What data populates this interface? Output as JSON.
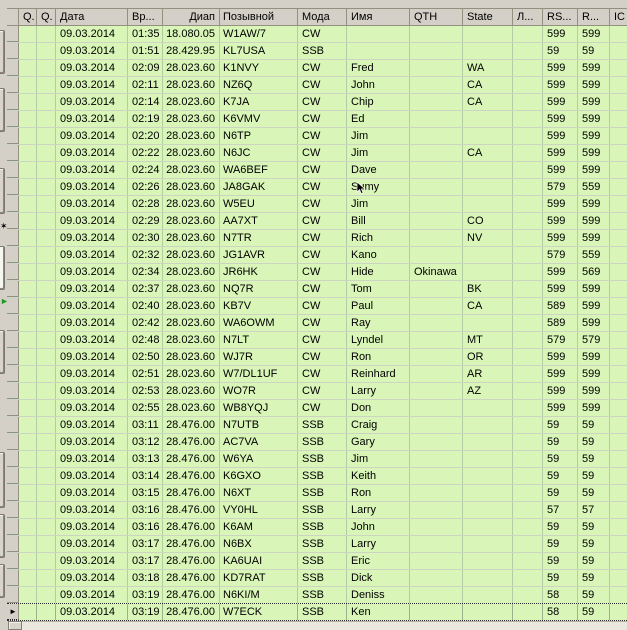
{
  "colors": {
    "window_chrome": "#d4d0c8",
    "cell_bg": "#d9f6b8",
    "grid_v_line": "#b2cda1",
    "grid_h_line": "#ccd4c2",
    "header_bg": "#d4d0c8",
    "header_line": "#94907f",
    "text": "#000000",
    "focus_dotted": "#2b2b2b",
    "green_arrow": "#1f9a27"
  },
  "icons": {
    "current_row_marker": "►",
    "left_toolbar_star": "✶",
    "left_toolbar_green_arrow": "►"
  },
  "table": {
    "headers": {
      "q1": "Q.",
      "q2": "Q.",
      "date": "Дата",
      "time": "Вр...",
      "freq": "Диап",
      "call": "Позывной",
      "mode": "Мода",
      "name": "Имя",
      "qth": "QTH",
      "state": "State",
      "l": "Л...",
      "rs_s": "RS...",
      "rs_r": "R...",
      "ic": "IC"
    },
    "rows": [
      {
        "q1": "",
        "q2": "",
        "date": "09.03.2014",
        "time": "01:35",
        "freq": "18.080.05",
        "call": "W1AW/7",
        "mode": "CW",
        "name": "",
        "qth": "",
        "state": "",
        "l": "",
        "rs_s": "599",
        "rs_r": "599",
        "ic": "",
        "focused": false
      },
      {
        "q1": "",
        "q2": "",
        "date": "09.03.2014",
        "time": "01:51",
        "freq": "28.429.95",
        "call": "KL7USA",
        "mode": "SSB",
        "name": "",
        "qth": "",
        "state": "",
        "l": "",
        "rs_s": "59",
        "rs_r": "59",
        "ic": "",
        "focused": false
      },
      {
        "q1": "",
        "q2": "",
        "date": "09.03.2014",
        "time": "02:09",
        "freq": "28.023.60",
        "call": "K1NVY",
        "mode": "CW",
        "name": "Fred",
        "qth": "",
        "state": "WA",
        "l": "",
        "rs_s": "599",
        "rs_r": "599",
        "ic": "",
        "focused": false
      },
      {
        "q1": "",
        "q2": "",
        "date": "09.03.2014",
        "time": "02:11",
        "freq": "28.023.60",
        "call": "NZ6Q",
        "mode": "CW",
        "name": "John",
        "qth": "",
        "state": "CA",
        "l": "",
        "rs_s": "599",
        "rs_r": "599",
        "ic": "",
        "focused": false
      },
      {
        "q1": "",
        "q2": "",
        "date": "09.03.2014",
        "time": "02:14",
        "freq": "28.023.60",
        "call": "K7JA",
        "mode": "CW",
        "name": "Chip",
        "qth": "",
        "state": "CA",
        "l": "",
        "rs_s": "599",
        "rs_r": "599",
        "ic": "",
        "focused": false
      },
      {
        "q1": "",
        "q2": "",
        "date": "09.03.2014",
        "time": "02:19",
        "freq": "28.023.60",
        "call": "K6VMV",
        "mode": "CW",
        "name": "Ed",
        "qth": "",
        "state": "",
        "l": "",
        "rs_s": "599",
        "rs_r": "599",
        "ic": "",
        "focused": false
      },
      {
        "q1": "",
        "q2": "",
        "date": "09.03.2014",
        "time": "02:20",
        "freq": "28.023.60",
        "call": "N6TP",
        "mode": "CW",
        "name": "Jim",
        "qth": "",
        "state": "",
        "l": "",
        "rs_s": "599",
        "rs_r": "599",
        "ic": "",
        "focused": false
      },
      {
        "q1": "",
        "q2": "",
        "date": "09.03.2014",
        "time": "02:22",
        "freq": "28.023.60",
        "call": "N6JC",
        "mode": "CW",
        "name": "Jim",
        "qth": "",
        "state": "CA",
        "l": "",
        "rs_s": "599",
        "rs_r": "599",
        "ic": "",
        "focused": false
      },
      {
        "q1": "",
        "q2": "",
        "date": "09.03.2014",
        "time": "02:24",
        "freq": "28.023.60",
        "call": "WA6BEF",
        "mode": "CW",
        "name": "Dave",
        "qth": "",
        "state": "",
        "l": "",
        "rs_s": "599",
        "rs_r": "599",
        "ic": "",
        "focused": false
      },
      {
        "q1": "",
        "q2": "",
        "date": "09.03.2014",
        "time": "02:26",
        "freq": "28.023.60",
        "call": "JA8GAK",
        "mode": "CW",
        "name": "Sumy",
        "qth": "",
        "state": "",
        "l": "",
        "rs_s": "579",
        "rs_r": "559",
        "ic": "",
        "focused": false
      },
      {
        "q1": "",
        "q2": "",
        "date": "09.03.2014",
        "time": "02:28",
        "freq": "28.023.60",
        "call": "W5EU",
        "mode": "CW",
        "name": "Jim",
        "qth": "",
        "state": "",
        "l": "",
        "rs_s": "599",
        "rs_r": "599",
        "ic": "",
        "focused": false
      },
      {
        "q1": "",
        "q2": "",
        "date": "09.03.2014",
        "time": "02:29",
        "freq": "28.023.60",
        "call": "AA7XT",
        "mode": "CW",
        "name": "Bill",
        "qth": "",
        "state": "CO",
        "l": "",
        "rs_s": "599",
        "rs_r": "599",
        "ic": "",
        "focused": false
      },
      {
        "q1": "",
        "q2": "",
        "date": "09.03.2014",
        "time": "02:30",
        "freq": "28.023.60",
        "call": "N7TR",
        "mode": "CW",
        "name": "Rich",
        "qth": "",
        "state": "NV",
        "l": "",
        "rs_s": "599",
        "rs_r": "599",
        "ic": "",
        "focused": false
      },
      {
        "q1": "",
        "q2": "",
        "date": "09.03.2014",
        "time": "02:32",
        "freq": "28.023.60",
        "call": "JG1AVR",
        "mode": "CW",
        "name": "Kano",
        "qth": "",
        "state": "",
        "l": "",
        "rs_s": "579",
        "rs_r": "559",
        "ic": "",
        "focused": false
      },
      {
        "q1": "",
        "q2": "",
        "date": "09.03.2014",
        "time": "02:34",
        "freq": "28.023.60",
        "call": "JR6HK",
        "mode": "CW",
        "name": "Hide",
        "qth": "Okinawa",
        "state": "",
        "l": "",
        "rs_s": "599",
        "rs_r": "569",
        "ic": "",
        "focused": false
      },
      {
        "q1": "",
        "q2": "",
        "date": "09.03.2014",
        "time": "02:37",
        "freq": "28.023.60",
        "call": "NQ7R",
        "mode": "CW",
        "name": "Tom",
        "qth": "",
        "state": "BK",
        "l": "",
        "rs_s": "599",
        "rs_r": "599",
        "ic": "",
        "focused": false
      },
      {
        "q1": "",
        "q2": "",
        "date": "09.03.2014",
        "time": "02:40",
        "freq": "28.023.60",
        "call": "KB7V",
        "mode": "CW",
        "name": "Paul",
        "qth": "",
        "state": "CA",
        "l": "",
        "rs_s": "589",
        "rs_r": "599",
        "ic": "",
        "focused": false
      },
      {
        "q1": "",
        "q2": "",
        "date": "09.03.2014",
        "time": "02:42",
        "freq": "28.023.60",
        "call": "WA6OWM",
        "mode": "CW",
        "name": "Ray",
        "qth": "",
        "state": "",
        "l": "",
        "rs_s": "589",
        "rs_r": "599",
        "ic": "",
        "focused": false
      },
      {
        "q1": "",
        "q2": "",
        "date": "09.03.2014",
        "time": "02:48",
        "freq": "28.023.60",
        "call": "N7LT",
        "mode": "CW",
        "name": "Lyndel",
        "qth": "",
        "state": "MT",
        "l": "",
        "rs_s": "579",
        "rs_r": "579",
        "ic": "",
        "focused": false
      },
      {
        "q1": "",
        "q2": "",
        "date": "09.03.2014",
        "time": "02:50",
        "freq": "28.023.60",
        "call": "WJ7R",
        "mode": "CW",
        "name": "Ron",
        "qth": "",
        "state": "OR",
        "l": "",
        "rs_s": "599",
        "rs_r": "599",
        "ic": "",
        "focused": false
      },
      {
        "q1": "",
        "q2": "",
        "date": "09.03.2014",
        "time": "02:51",
        "freq": "28.023.60",
        "call": "W7/DL1UF",
        "mode": "CW",
        "name": "Reinhard",
        "qth": "",
        "state": "AR",
        "l": "",
        "rs_s": "599",
        "rs_r": "599",
        "ic": "",
        "focused": false
      },
      {
        "q1": "",
        "q2": "",
        "date": "09.03.2014",
        "time": "02:53",
        "freq": "28.023.60",
        "call": "WO7R",
        "mode": "CW",
        "name": "Larry",
        "qth": "",
        "state": "AZ",
        "l": "",
        "rs_s": "599",
        "rs_r": "599",
        "ic": "",
        "focused": false
      },
      {
        "q1": "",
        "q2": "",
        "date": "09.03.2014",
        "time": "02:55",
        "freq": "28.023.60",
        "call": "WB8YQJ",
        "mode": "CW",
        "name": "Don",
        "qth": "",
        "state": "",
        "l": "",
        "rs_s": "599",
        "rs_r": "599",
        "ic": "",
        "focused": false
      },
      {
        "q1": "",
        "q2": "",
        "date": "09.03.2014",
        "time": "03:11",
        "freq": "28.476.00",
        "call": "N7UTB",
        "mode": "SSB",
        "name": "Craig",
        "qth": "",
        "state": "",
        "l": "",
        "rs_s": "59",
        "rs_r": "59",
        "ic": "",
        "focused": false
      },
      {
        "q1": "",
        "q2": "",
        "date": "09.03.2014",
        "time": "03:12",
        "freq": "28.476.00",
        "call": "AC7VA",
        "mode": "SSB",
        "name": "Gary",
        "qth": "",
        "state": "",
        "l": "",
        "rs_s": "59",
        "rs_r": "59",
        "ic": "",
        "focused": false
      },
      {
        "q1": "",
        "q2": "",
        "date": "09.03.2014",
        "time": "03:13",
        "freq": "28.476.00",
        "call": "W6YA",
        "mode": "SSB",
        "name": "Jim",
        "qth": "",
        "state": "",
        "l": "",
        "rs_s": "59",
        "rs_r": "59",
        "ic": "",
        "focused": false
      },
      {
        "q1": "",
        "q2": "",
        "date": "09.03.2014",
        "time": "03:14",
        "freq": "28.476.00",
        "call": "K6GXO",
        "mode": "SSB",
        "name": "Keith",
        "qth": "",
        "state": "",
        "l": "",
        "rs_s": "59",
        "rs_r": "59",
        "ic": "",
        "focused": false
      },
      {
        "q1": "",
        "q2": "",
        "date": "09.03.2014",
        "time": "03:15",
        "freq": "28.476.00",
        "call": "N6XT",
        "mode": "SSB",
        "name": "Ron",
        "qth": "",
        "state": "",
        "l": "",
        "rs_s": "59",
        "rs_r": "59",
        "ic": "",
        "focused": false
      },
      {
        "q1": "",
        "q2": "",
        "date": "09.03.2014",
        "time": "03:16",
        "freq": "28.476.00",
        "call": "VY0HL",
        "mode": "SSB",
        "name": "Larry",
        "qth": "",
        "state": "",
        "l": "",
        "rs_s": "57",
        "rs_r": "57",
        "ic": "",
        "focused": false
      },
      {
        "q1": "",
        "q2": "",
        "date": "09.03.2014",
        "time": "03:16",
        "freq": "28.476.00",
        "call": "K6AM",
        "mode": "SSB",
        "name": "John",
        "qth": "",
        "state": "",
        "l": "",
        "rs_s": "59",
        "rs_r": "59",
        "ic": "",
        "focused": false
      },
      {
        "q1": "",
        "q2": "",
        "date": "09.03.2014",
        "time": "03:17",
        "freq": "28.476.00",
        "call": "N6BX",
        "mode": "SSB",
        "name": "Larry",
        "qth": "",
        "state": "",
        "l": "",
        "rs_s": "59",
        "rs_r": "59",
        "ic": "",
        "focused": false
      },
      {
        "q1": "",
        "q2": "",
        "date": "09.03.2014",
        "time": "03:17",
        "freq": "28.476.00",
        "call": "KA6UAI",
        "mode": "SSB",
        "name": "Eric",
        "qth": "",
        "state": "",
        "l": "",
        "rs_s": "59",
        "rs_r": "59",
        "ic": "",
        "focused": false
      },
      {
        "q1": "",
        "q2": "",
        "date": "09.03.2014",
        "time": "03:18",
        "freq": "28.476.00",
        "call": "KD7RAT",
        "mode": "SSB",
        "name": "Dick",
        "qth": "",
        "state": "",
        "l": "",
        "rs_s": "59",
        "rs_r": "59",
        "ic": "",
        "focused": false
      },
      {
        "q1": "",
        "q2": "",
        "date": "09.03.2014",
        "time": "03:19",
        "freq": "28.476.00",
        "call": "N6KI/M",
        "mode": "SSB",
        "name": "Deniss",
        "qth": "",
        "state": "",
        "l": "",
        "rs_s": "58",
        "rs_r": "59",
        "ic": "",
        "focused": false
      },
      {
        "q1": "",
        "q2": "",
        "date": "09.03.2014",
        "time": "03:19",
        "freq": "28.476.00",
        "call": "W7ECK",
        "mode": "SSB",
        "name": "Ken",
        "qth": "",
        "state": "",
        "l": "",
        "rs_s": "58",
        "rs_r": "59",
        "ic": "",
        "focused": true
      }
    ]
  }
}
